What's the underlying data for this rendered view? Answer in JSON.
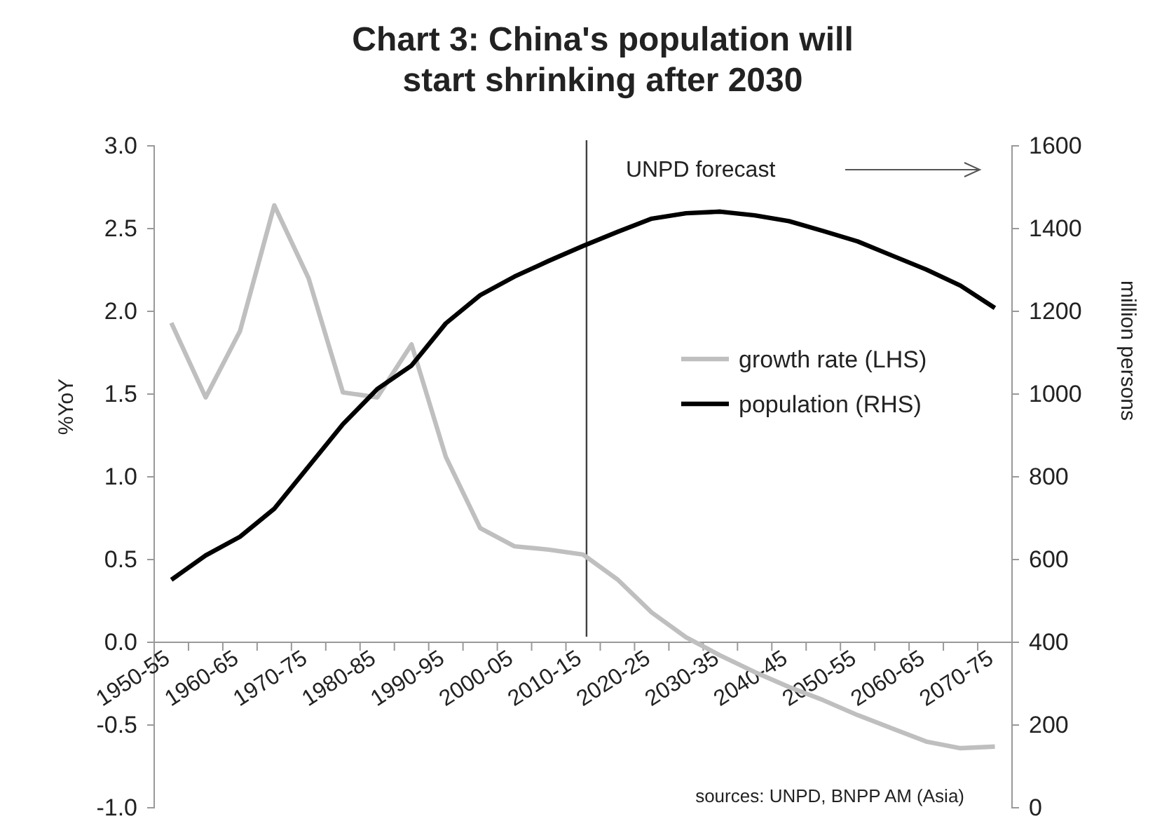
{
  "chart_data": {
    "type": "line",
    "title": "Chart 3: China's population will start shrinking after 2030",
    "ylabel": "%YoY",
    "y2label": "million persons",
    "categories": [
      "1950-55",
      null,
      "1960-65",
      null,
      "1970-75",
      null,
      "1980-85",
      null,
      "1990-95",
      null,
      "2000-05",
      null,
      "2010-15",
      null,
      "2020-25",
      null,
      "2030-35",
      null,
      "2040-45",
      null,
      "2050-55",
      null,
      "2060-65",
      null,
      "2070-75"
    ],
    "series": [
      {
        "name": "growth rate (LHS)",
        "color": "#bfbfbf",
        "values": [
          1.93,
          1.48,
          1.88,
          2.64,
          2.2,
          1.51,
          1.48,
          1.8,
          1.12,
          0.69,
          0.58,
          0.56,
          0.53,
          0.38,
          0.18,
          0.03,
          -0.08,
          -0.18,
          -0.27,
          -0.35,
          -0.44,
          -0.52,
          -0.6,
          -0.64,
          -0.63
        ]
      },
      {
        "name": "population (RHS)",
        "color": "#000000",
        "axis": "y2",
        "values": [
          551,
          610,
          655,
          723,
          825,
          927,
          1012,
          1069,
          1171,
          1239,
          1284,
          1322,
          1358,
          1392,
          1424,
          1437,
          1441,
          1432,
          1418,
          1394,
          1369,
          1335,
          1301,
          1262,
          1208
        ]
      }
    ],
    "ylim": [
      -1,
      3
    ],
    "yticks": [
      {
        "value": -1,
        "label": "-1.0"
      },
      {
        "value": -0.5,
        "label": "-0.5"
      },
      {
        "value": 0,
        "label": "0.0"
      },
      {
        "value": 0.5,
        "label": "0.5"
      },
      {
        "value": 1,
        "label": "1.0"
      },
      {
        "value": 1.5,
        "label": "1.5"
      },
      {
        "value": 2,
        "label": "2.0"
      },
      {
        "value": 2.5,
        "label": "2.5"
      },
      {
        "value": 3,
        "label": "3.0"
      }
    ],
    "y2lim": [
      0,
      1600
    ],
    "y2ticks": [
      0,
      200,
      400,
      600,
      800,
      1000,
      1200,
      1400,
      1600
    ],
    "ref_lines": [
      {
        "axis": "x",
        "value": "2010-15",
        "label": "UNPD forecast",
        "color": "#404040"
      }
    ],
    "annotations": [
      "sources: UNPD, BNPP AM (Asia)"
    ],
    "legend": "right",
    "grid": false,
    "marker": "none",
    "line_style": "solid"
  }
}
